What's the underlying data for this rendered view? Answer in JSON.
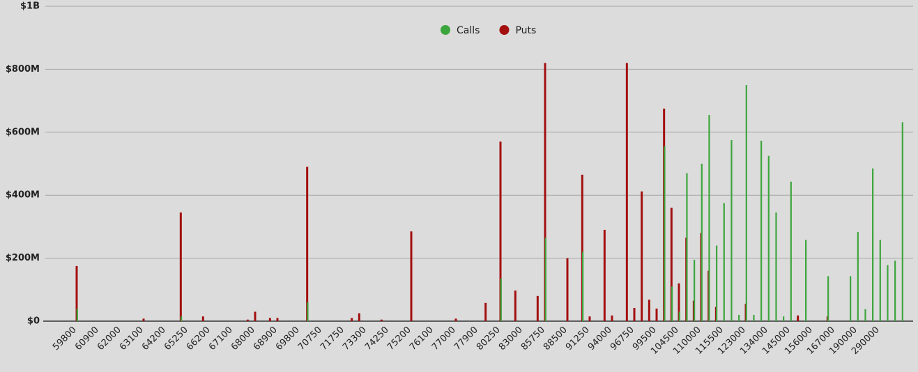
{
  "chart_data": {
    "type": "bar",
    "categories": [
      null,
      null,
      null,
      null,
      "59800",
      null,
      null,
      "60900",
      null,
      null,
      "62000",
      null,
      null,
      "63100",
      null,
      null,
      "64200",
      null,
      null,
      "65250",
      null,
      null,
      "66200",
      null,
      null,
      "67100",
      null,
      null,
      "68000",
      null,
      null,
      "68900",
      null,
      null,
      "69800",
      null,
      null,
      "70750",
      null,
      null,
      "71750",
      null,
      null,
      "73300",
      null,
      null,
      "74250",
      null,
      null,
      "75200",
      null,
      null,
      "76100",
      null,
      null,
      "77000",
      null,
      null,
      "77900",
      null,
      null,
      "80250",
      null,
      null,
      "83000",
      null,
      null,
      "85750",
      null,
      null,
      "88500",
      null,
      null,
      "91250",
      null,
      null,
      "94000",
      null,
      null,
      "96750",
      null,
      null,
      "99500",
      null,
      null,
      "104500",
      null,
      null,
      "110000",
      null,
      null,
      "115500",
      null,
      null,
      "123000",
      null,
      null,
      "134000",
      null,
      null,
      "145000",
      null,
      null,
      "156000",
      null,
      null,
      "167000",
      null,
      null,
      "190000",
      null,
      null,
      "290000",
      null,
      null,
      null,
      null
    ],
    "series": [
      {
        "name": "Puts",
        "color": "#a30f0f",
        "values": [
          0,
          0,
          0,
          0,
          175000000,
          0,
          0,
          0,
          0,
          0,
          0,
          0,
          0,
          8000000,
          0,
          0,
          0,
          0,
          345000000,
          0,
          0,
          15000000,
          0,
          0,
          0,
          0,
          0,
          5000000,
          30000000,
          0,
          10000000,
          10000000,
          0,
          0,
          0,
          490000000,
          0,
          0,
          0,
          0,
          0,
          10000000,
          25000000,
          0,
          0,
          5000000,
          0,
          0,
          0,
          285000000,
          0,
          0,
          0,
          0,
          0,
          8000000,
          0,
          0,
          0,
          58000000,
          0,
          570000000,
          0,
          97000000,
          0,
          0,
          80000000,
          820000000,
          0,
          0,
          200000000,
          0,
          465000000,
          15000000,
          0,
          290000000,
          18000000,
          0,
          820000000,
          42000000,
          412000000,
          68000000,
          40000000,
          675000000,
          360000000,
          120000000,
          265000000,
          65000000,
          280000000,
          160000000,
          45000000,
          0,
          0,
          0,
          55000000,
          0,
          0,
          0,
          0,
          0,
          0,
          18000000,
          0,
          0,
          0,
          15000000,
          0,
          0,
          0,
          0,
          0,
          0,
          0,
          0,
          0,
          0,
          0
        ]
      },
      {
        "name": "Calls",
        "color": "#3da53d",
        "values": [
          0,
          0,
          0,
          0,
          40000000,
          0,
          0,
          0,
          0,
          0,
          0,
          0,
          0,
          0,
          0,
          0,
          0,
          0,
          15000000,
          0,
          0,
          0,
          0,
          0,
          0,
          0,
          0,
          0,
          0,
          0,
          0,
          0,
          0,
          0,
          0,
          60000000,
          0,
          0,
          0,
          0,
          0,
          0,
          0,
          0,
          0,
          0,
          0,
          0,
          0,
          0,
          0,
          0,
          0,
          0,
          0,
          0,
          0,
          0,
          0,
          0,
          0,
          135000000,
          0,
          0,
          0,
          0,
          0,
          265000000,
          0,
          0,
          0,
          0,
          220000000,
          0,
          0,
          0,
          0,
          0,
          0,
          0,
          0,
          0,
          0,
          555000000,
          110000000,
          30000000,
          470000000,
          195000000,
          500000000,
          655000000,
          240000000,
          375000000,
          575000000,
          20000000,
          750000000,
          20000000,
          573000000,
          525000000,
          345000000,
          15000000,
          443000000,
          0,
          258000000,
          0,
          0,
          143000000,
          0,
          0,
          143000000,
          283000000,
          38000000,
          485000000,
          258000000,
          178000000,
          192000000,
          632000000,
          0
        ]
      }
    ],
    "ylim": [
      0,
      1000000000
    ],
    "yticks": [
      {
        "value": 0,
        "label": "$0"
      },
      {
        "value": 200000000,
        "label": "$200M"
      },
      {
        "value": 400000000,
        "label": "$400M"
      },
      {
        "value": 600000000,
        "label": "$600M"
      },
      {
        "value": 800000000,
        "label": "$800M"
      },
      {
        "value": 1000000000,
        "label": "$1B"
      }
    ],
    "grid": true
  }
}
